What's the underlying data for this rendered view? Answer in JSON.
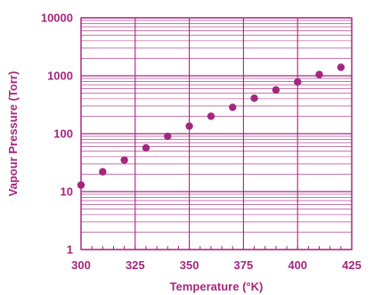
{
  "colors": {
    "accent": "#a4277f",
    "grid": "#a4277f"
  },
  "chart_data": {
    "type": "scatter",
    "title": "",
    "xlabel": "Temperature (°K)",
    "ylabel": "Vapour Pressure (Torr)",
    "xlim": [
      300,
      425
    ],
    "ylim": [
      1,
      10000
    ],
    "yscale": "log",
    "grid": true,
    "x_ticks": [
      "300",
      "325",
      "350",
      "375",
      "400",
      "425"
    ],
    "y_ticks": [
      "1",
      "10",
      "100",
      "1000",
      "10000"
    ],
    "series": [
      {
        "x": [
          300,
          310,
          320,
          330,
          340,
          350,
          360,
          370,
          380,
          390,
          400,
          410,
          420
        ],
        "y": [
          13,
          22,
          35,
          57,
          90,
          135,
          200,
          285,
          410,
          570,
          780,
          1050,
          1400
        ]
      }
    ]
  }
}
